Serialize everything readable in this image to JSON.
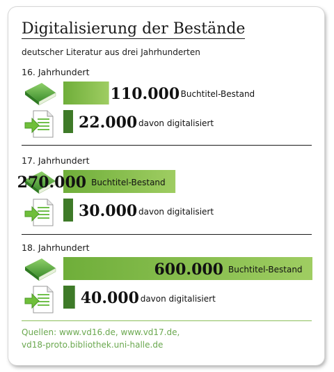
{
  "title": "Digitalisierung der Bestände",
  "subtitle": "deutscher Literatur aus drei Jahrhunderten",
  "sources": [
    "Quellen: www.vd16.de, www.vd17.de,",
    "vd18-proto.bibliothek.uni-halle.de"
  ],
  "icons": {
    "book": "green-book-icon",
    "digitized": "document-arrow-icon"
  },
  "colors": {
    "total_bar": "#7db544",
    "digitized_bar": "#3e7a28",
    "source_text": "#6aa84f"
  },
  "chart_data": {
    "type": "bar",
    "orientation": "horizontal",
    "categories": [
      "16. Jahrhundert",
      "17. Jahrhundert",
      "18. Jahrhundert"
    ],
    "series": [
      {
        "name": "Buchtitel-Bestand",
        "values": [
          110000,
          270000,
          600000
        ],
        "labels": [
          "110.000",
          "270.000",
          "600.000"
        ]
      },
      {
        "name": "davon digitalisiert",
        "values": [
          22000,
          30000,
          40000
        ],
        "labels": [
          "22.000",
          "30.000",
          "40.000"
        ]
      }
    ]
  }
}
